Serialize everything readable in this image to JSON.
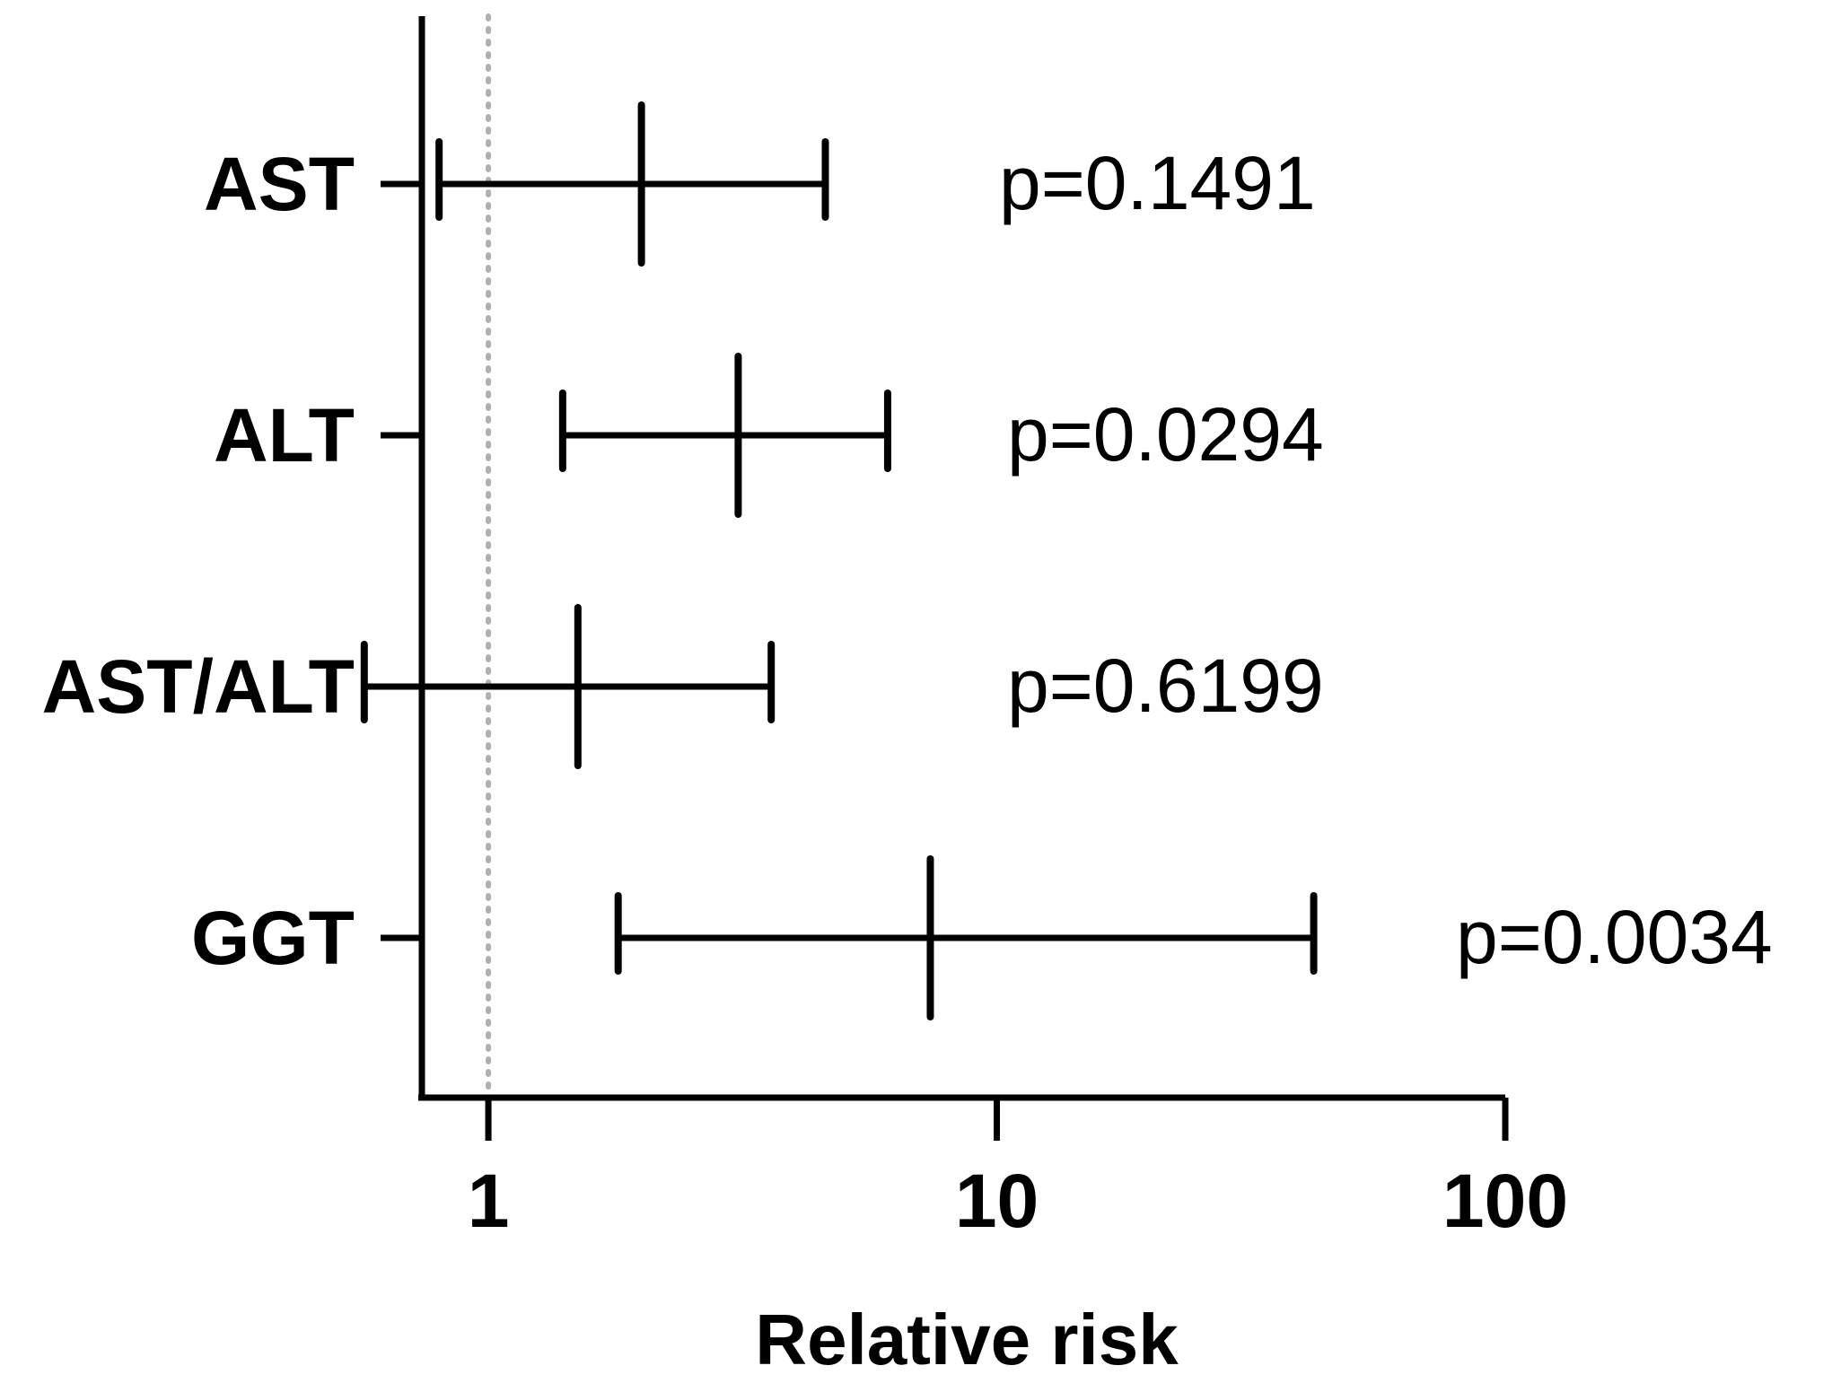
{
  "chart_data": {
    "type": "forest",
    "xlabel": "Relative risk",
    "xscale": "log",
    "xlim": [
      0.74,
      100
    ],
    "xticks": [
      1,
      10,
      100
    ],
    "xtick_labels": [
      "1",
      "10",
      "100"
    ],
    "reference_line": 1,
    "rows": [
      {
        "label": "AST",
        "estimate": 2.0,
        "lower": 0.8,
        "upper": 4.6,
        "p_text": "p=0.1491"
      },
      {
        "label": "ALT",
        "estimate": 3.1,
        "lower": 1.4,
        "upper": 6.1,
        "p_text": "p=0.0294"
      },
      {
        "label": "AST/ALT",
        "estimate": 1.5,
        "lower": 0.57,
        "upper": 3.6,
        "p_text": "p=0.6199"
      },
      {
        "label": "GGT",
        "estimate": 7.4,
        "lower": 1.8,
        "upper": 42.0,
        "p_text": "p=0.0034"
      }
    ]
  }
}
